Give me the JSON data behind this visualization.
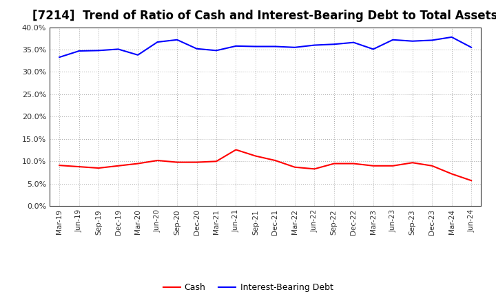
{
  "title": "[7214]  Trend of Ratio of Cash and Interest-Bearing Debt to Total Assets",
  "x_labels": [
    "Mar-19",
    "Jun-19",
    "Sep-19",
    "Dec-19",
    "Mar-20",
    "Jun-20",
    "Sep-20",
    "Dec-20",
    "Mar-21",
    "Jun-21",
    "Sep-21",
    "Dec-21",
    "Mar-22",
    "Jun-22",
    "Sep-22",
    "Dec-22",
    "Mar-23",
    "Jun-23",
    "Sep-23",
    "Dec-23",
    "Mar-24",
    "Jun-24"
  ],
  "cash": [
    0.091,
    0.088,
    0.085,
    0.09,
    0.095,
    0.102,
    0.098,
    0.098,
    0.1,
    0.126,
    0.112,
    0.102,
    0.087,
    0.083,
    0.095,
    0.095,
    0.09,
    0.09,
    0.097,
    0.09,
    0.072,
    0.057
  ],
  "ibd": [
    0.333,
    0.347,
    0.348,
    0.351,
    0.338,
    0.367,
    0.372,
    0.352,
    0.348,
    0.358,
    0.357,
    0.357,
    0.355,
    0.36,
    0.362,
    0.366,
    0.351,
    0.372,
    0.369,
    0.371,
    0.378,
    0.355
  ],
  "cash_color": "#ff0000",
  "ibd_color": "#0000ff",
  "background_color": "#ffffff",
  "plot_bg_color": "#ffffff",
  "grid_color": "#aaaaaa",
  "ylim": [
    0.0,
    0.4
  ],
  "yticks": [
    0.0,
    0.05,
    0.1,
    0.15,
    0.2,
    0.25,
    0.3,
    0.35,
    0.4
  ],
  "title_fontsize": 12,
  "legend_labels": [
    "Cash",
    "Interest-Bearing Debt"
  ]
}
